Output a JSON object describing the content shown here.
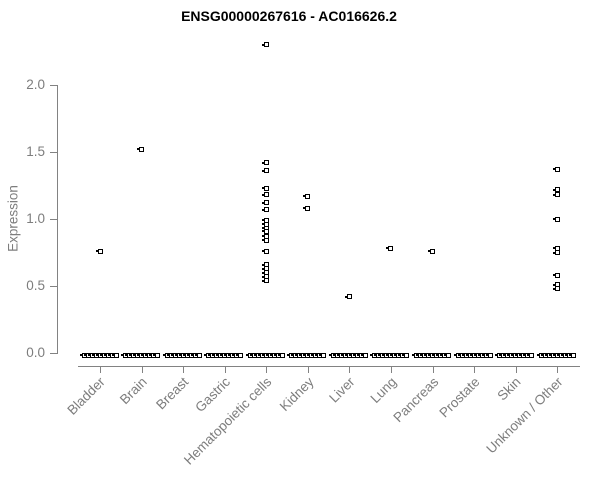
{
  "title": "ENSG00000267616 - AC016626.2",
  "chart_data": {
    "type": "scatter",
    "subtype": "strip-plot",
    "title": "ENSG00000267616 - AC016626.2",
    "xlabel": "",
    "ylabel": "Expression",
    "ylim": [
      0.0,
      2.35
    ],
    "yticks": [
      0.0,
      0.5,
      1.0,
      1.5,
      2.0
    ],
    "grid": false,
    "legend": false,
    "marker": "open-square",
    "marker_color": "#000000",
    "axis_color": "#828282",
    "tick_label_color": "#7d7d7d",
    "categories": [
      "Bladder",
      "Brain",
      "Breast",
      "Gastric",
      "Hematopoietic cells",
      "Kidney",
      "Liver",
      "Lung",
      "Pancreas",
      "Prostate",
      "Skin",
      "Unknown / Other"
    ],
    "series": [
      {
        "name": "Expression",
        "points_by_category": {
          "Bladder": [
            0.76
          ],
          "Brain": [
            1.52
          ],
          "Breast": [],
          "Gastric": [],
          "Hematopoietic cells": [
            2.3,
            1.42,
            1.36,
            1.23,
            1.18,
            1.12,
            1.07,
            0.99,
            0.96,
            0.93,
            0.91,
            0.87,
            0.84,
            0.76,
            0.66,
            0.63,
            0.6,
            0.57,
            0.54
          ],
          "Kidney": [
            1.17,
            1.08
          ],
          "Liver": [
            0.42
          ],
          "Lung": [
            0.78
          ],
          "Pancreas": [
            0.76
          ],
          "Prostate": [],
          "Skin": [],
          "Unknown / Other": [
            1.37,
            1.22,
            1.18,
            1.0,
            0.78,
            0.75,
            0.58,
            0.51,
            0.48
          ]
        }
      }
    ],
    "zero_band": {
      "value": 0.0,
      "description": "dense horizontal band of many overlapping points at expression 0.0 in every category",
      "categories_with_band": [
        "Bladder",
        "Brain",
        "Breast",
        "Gastric",
        "Hematopoietic cells",
        "Kidney",
        "Liver",
        "Lung",
        "Pancreas",
        "Prostate",
        "Skin",
        "Unknown / Other"
      ]
    }
  }
}
